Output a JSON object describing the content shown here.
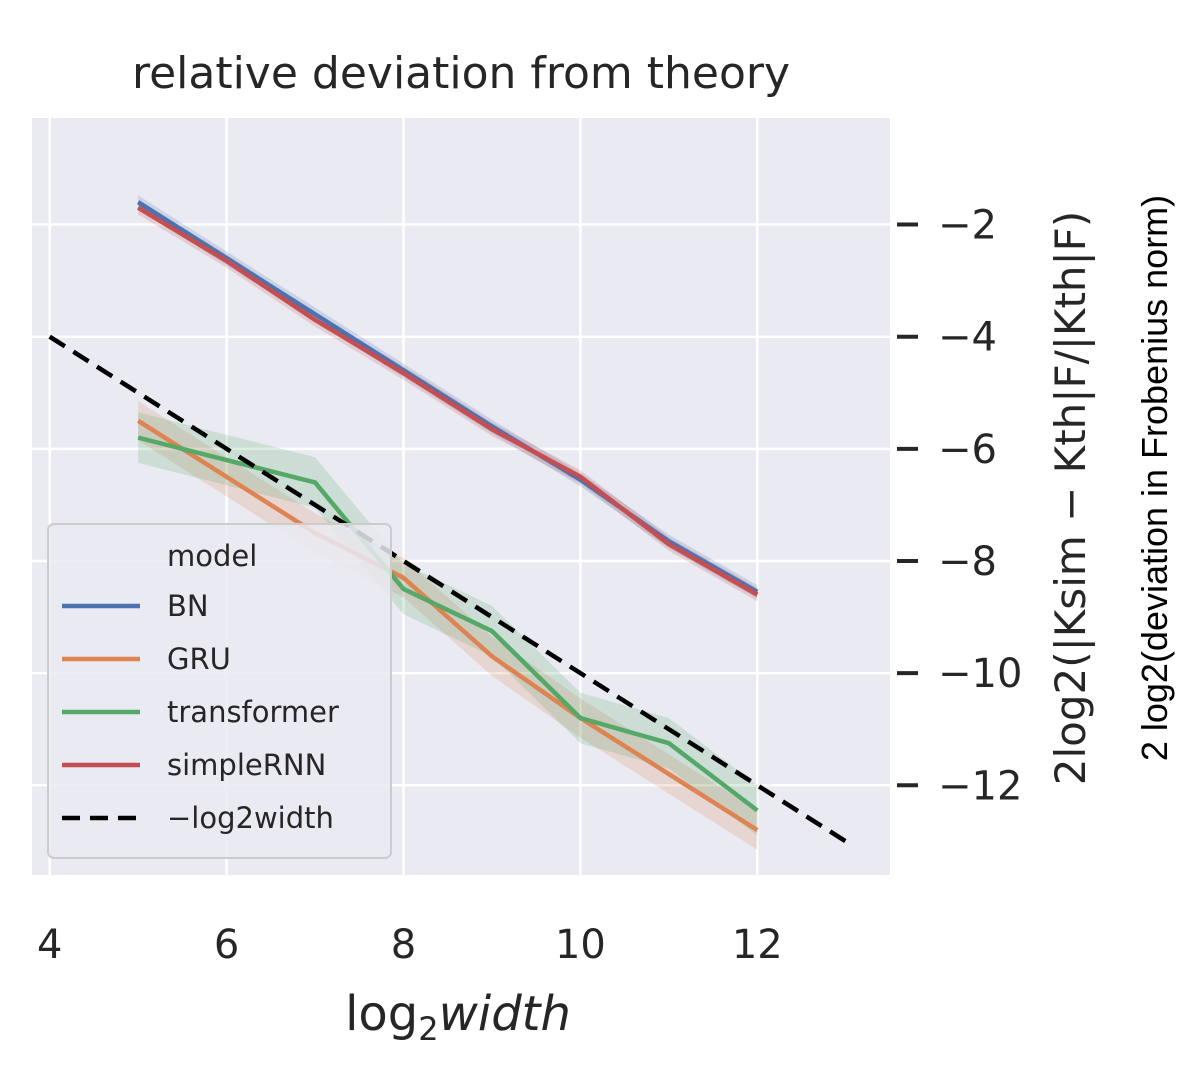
{
  "chart_data": {
    "type": "line",
    "title": "relative deviation from theory",
    "xlabel_prefix": "log",
    "xlabel_sub": "2",
    "xlabel_italic": "width",
    "ylabel": "2log2(|Ksim − Kth|F/|Kth|F)",
    "ylabel_annotation": "2 log2(deviation in Frobenius norm)",
    "xlim": [
      3.8,
      13.5
    ],
    "ylim": [
      -13.6,
      -0.1
    ],
    "x_ticks": [
      4,
      6,
      8,
      10,
      12
    ],
    "x_tick_labels": [
      "4",
      "6",
      "8",
      "10",
      "12"
    ],
    "y_ticks": [
      -2,
      -4,
      -6,
      -8,
      -10,
      -12
    ],
    "y_tick_labels": [
      "−2",
      "−4",
      "−6",
      "−8",
      "−10",
      "−12"
    ],
    "y_axis_side": "right",
    "grid": true,
    "legend": {
      "title": "model",
      "position": "lower-left",
      "entries": [
        "BN",
        "GRU",
        "transformer",
        "simpleRNN",
        "−log2width"
      ]
    },
    "x": [
      5,
      6,
      7,
      8,
      9,
      10,
      11,
      12
    ],
    "series": [
      {
        "name": "BN",
        "color": "#4c72b0",
        "values": [
          -1.6,
          -2.6,
          -3.6,
          -4.6,
          -5.6,
          -6.55,
          -7.65,
          -8.55
        ],
        "band": 0.12
      },
      {
        "name": "GRU",
        "color": "#dd8452",
        "values": [
          -5.5,
          -6.5,
          -7.5,
          -8.3,
          -9.7,
          -10.8,
          -11.8,
          -12.8
        ],
        "band": 0.35
      },
      {
        "name": "transformer",
        "color": "#55a868",
        "values": [
          -5.8,
          -6.2,
          -6.6,
          -8.5,
          -9.25,
          -10.8,
          -11.25,
          -12.45
        ],
        "band": 0.45
      },
      {
        "name": "simpleRNN",
        "color": "#c44e52",
        "values": [
          -1.7,
          -2.65,
          -3.7,
          -4.65,
          -5.65,
          -6.5,
          -7.7,
          -8.6
        ],
        "band": 0.12
      }
    ],
    "reference_line": {
      "name": "−log2width",
      "color": "#000000",
      "x": [
        4,
        13
      ],
      "values": [
        -4,
        -13
      ],
      "style": "dashed"
    }
  }
}
